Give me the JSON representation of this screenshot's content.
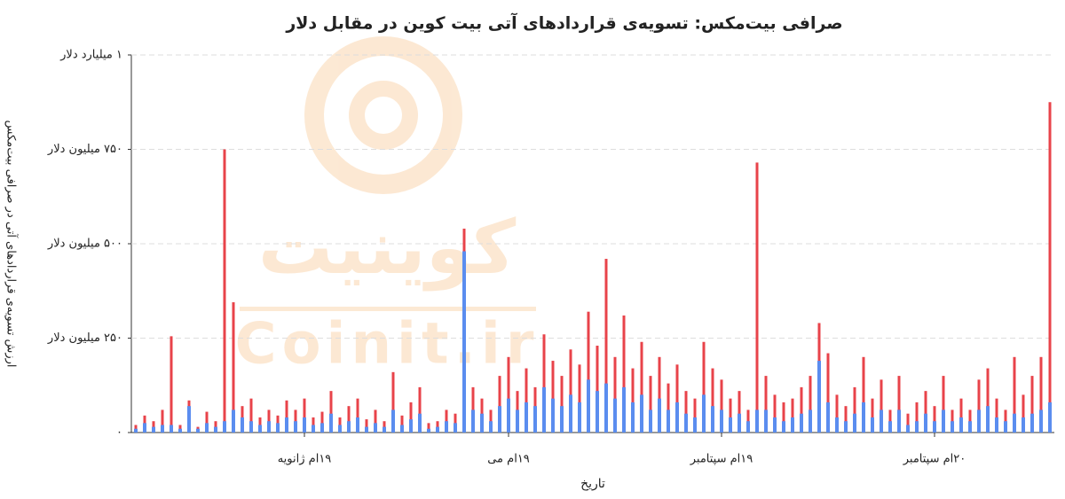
{
  "chart_data": {
    "type": "bar",
    "title": "صرافی بیت‌مکس: تسویه‌ی قراردادهای آتی بیت کوین در مقابل دلار",
    "x_label": "تاریخ",
    "y_label": "ارزش تسویه‌ی قراردادهای آتی در صرافی بیت‌مکس",
    "watermark": [
      "کوینیت",
      "Coinit.ir"
    ],
    "categories": [
      null,
      null,
      null,
      null,
      null,
      null,
      null,
      null,
      null,
      null,
      null,
      null,
      null,
      null,
      null,
      null,
      null,
      null,
      null,
      "۱۹ام ژانویه",
      null,
      null,
      null,
      null,
      null,
      null,
      null,
      null,
      null,
      null,
      null,
      null,
      null,
      null,
      null,
      null,
      null,
      null,
      null,
      null,
      null,
      null,
      "۱۹ام می",
      null,
      null,
      null,
      null,
      null,
      null,
      null,
      null,
      null,
      null,
      null,
      null,
      null,
      null,
      null,
      null,
      null,
      null,
      null,
      null,
      null,
      null,
      null,
      "۱۹ام سپتامبر",
      null,
      null,
      null,
      null,
      null,
      null,
      null,
      null,
      null,
      null,
      null,
      null,
      null,
      null,
      null,
      null,
      null,
      null,
      null,
      null,
      null,
      null,
      null,
      "۲۰ام سپتامبر",
      null,
      null,
      null,
      null,
      null,
      null,
      null,
      null,
      null,
      null,
      null,
      null,
      null
    ],
    "series": [
      {
        "color": "#e8434a",
        "values": [
          20,
          45,
          30,
          60,
          255,
          20,
          85,
          15,
          55,
          30,
          750,
          345,
          70,
          90,
          40,
          60,
          45,
          85,
          60,
          90,
          40,
          55,
          110,
          40,
          70,
          90,
          35,
          60,
          30,
          160,
          45,
          80,
          120,
          25,
          30,
          60,
          50,
          540,
          120,
          90,
          60,
          150,
          200,
          110,
          170,
          120,
          260,
          190,
          150,
          220,
          180,
          320,
          230,
          460,
          200,
          310,
          170,
          240,
          150,
          200,
          130,
          180,
          110,
          90,
          240,
          170,
          140,
          90,
          110,
          60,
          715,
          150,
          100,
          80,
          90,
          120,
          150,
          290,
          210,
          100,
          70,
          120,
          200,
          90,
          140,
          60,
          150,
          50,
          80,
          110,
          70,
          150,
          60,
          90,
          60,
          140,
          170,
          90,
          60,
          200,
          100,
          150,
          200,
          875
        ]
      },
      {
        "color": "#5b8def",
        "values": [
          10,
          25,
          15,
          20,
          20,
          10,
          70,
          10,
          25,
          15,
          30,
          60,
          40,
          30,
          20,
          30,
          25,
          40,
          30,
          40,
          20,
          25,
          50,
          20,
          30,
          40,
          15,
          25,
          15,
          60,
          20,
          35,
          50,
          10,
          15,
          30,
          25,
          480,
          60,
          50,
          30,
          70,
          90,
          60,
          80,
          70,
          120,
          90,
          70,
          100,
          80,
          140,
          110,
          130,
          90,
          120,
          80,
          100,
          60,
          90,
          60,
          80,
          50,
          40,
          100,
          70,
          60,
          40,
          50,
          30,
          60,
          60,
          40,
          30,
          40,
          50,
          60,
          190,
          80,
          40,
          30,
          50,
          80,
          40,
          60,
          30,
          60,
          20,
          30,
          50,
          30,
          60,
          30,
          40,
          30,
          60,
          70,
          40,
          30,
          50,
          40,
          50,
          60,
          80
        ]
      }
    ],
    "ylim": [
      0,
      1000
    ],
    "yticks": [
      {
        "value": 0,
        "label": "۰"
      },
      {
        "value": 250,
        "label": "۲۵۰ میلیون دلار"
      },
      {
        "value": 500,
        "label": "۵۰۰ میلیون دلار"
      },
      {
        "value": 750,
        "label": "۷۵۰ میلیون دلار"
      },
      {
        "value": 1000,
        "label": "۱ میلیارد دلار"
      }
    ],
    "grid": true
  }
}
